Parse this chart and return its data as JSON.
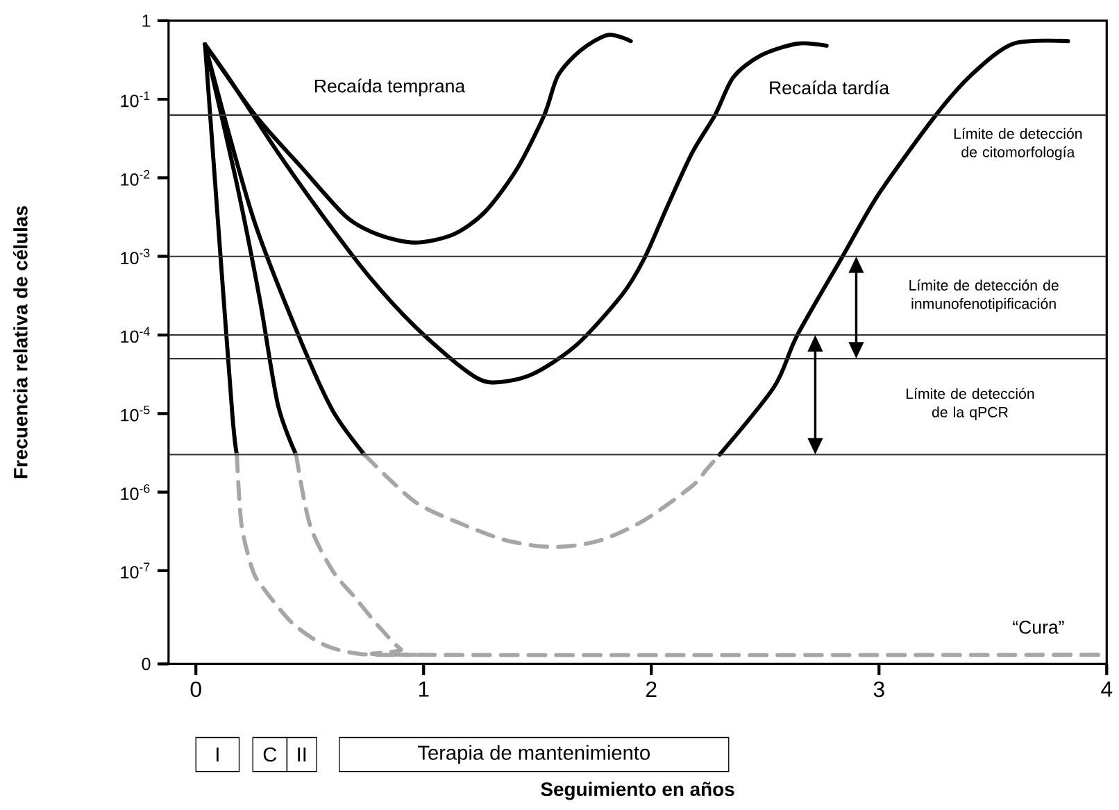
{
  "chart_data": {
    "type": "line",
    "xlabel": "Seguimiento en años",
    "ylabel": "Frecuencia relativa de células",
    "log": "y",
    "xlim": [
      -0.12,
      4
    ],
    "xticks": [
      0,
      1,
      2,
      3,
      4
    ],
    "ylim": [
      6.5e-09,
      1
    ],
    "yticks": [
      {
        "value": 6.5e-09,
        "label": "0"
      },
      {
        "value": 1e-07,
        "label": "10$^{-7}$"
      },
      {
        "value": 1e-06,
        "label": "10$^{-6}$"
      },
      {
        "value": 1e-05,
        "label": "10$^{-5}$"
      },
      {
        "value": 0.0001,
        "label": "10$^{-4}$"
      },
      {
        "value": 0.001,
        "label": "10$^{-3}$"
      },
      {
        "value": 0.01,
        "label": "10$^{-2}$"
      },
      {
        "value": 0.1,
        "label": "10$^{-1}$"
      },
      1
    ],
    "series": [
      {
        "color": "#000000",
        "line_style": "solid",
        "x": [
          0.04,
          0.26,
          0.46,
          0.66,
          0.8,
          0.96,
          1.13,
          1.27,
          1.41,
          1.53,
          1.59,
          1.69,
          1.81,
          1.91
        ],
        "values": [
          0.5,
          0.063,
          0.014,
          0.0032,
          0.0019,
          0.0015,
          0.0019,
          0.0037,
          0.013,
          0.063,
          0.2,
          0.42,
          0.66,
          0.55
        ]
      },
      {
        "color": "#000000",
        "line_style": "solid",
        "x": [
          0.04,
          0.16,
          0.36,
          0.56,
          0.76,
          0.96,
          1.17,
          1.29,
          1.47,
          1.67,
          1.87,
          1.97,
          2.07,
          2.18,
          2.28,
          2.36,
          2.48,
          2.64,
          2.77
        ],
        "values": [
          0.5,
          0.16,
          0.021,
          0.0032,
          0.00056,
          0.00013,
          3.8e-05,
          2.5e-05,
          3.1e-05,
          7.4e-05,
          0.00032,
          0.00095,
          0.0043,
          0.021,
          0.063,
          0.19,
          0.36,
          0.51,
          0.48
        ]
      },
      {
        "color": "#000000",
        "line_style": "solid",
        "x": [
          0.04,
          0.1,
          0.16,
          0.18
        ],
        "values": [
          0.5,
          0.0021,
          9.8e-06,
          3e-06
        ]
      },
      {
        "color": "#a6a6a6",
        "line_style": "dashed",
        "x": [
          0.18,
          0.2,
          0.25,
          0.3,
          0.42,
          0.56,
          0.72,
          0.96
        ],
        "values": [
          3e-06,
          3.9e-07,
          1e-07,
          5.8e-08,
          2.2e-08,
          1.15e-08,
          8.7e-09,
          8.5e-09
        ]
      },
      {
        "color": "#000000",
        "line_style": "solid",
        "x": [
          0.04,
          0.18,
          0.28,
          0.36,
          0.44
        ],
        "values": [
          0.5,
          0.0083,
          0.00029,
          1.3e-05,
          3e-06
        ]
      },
      {
        "color": "#a6a6a6",
        "line_style": "dashed",
        "x": [
          0.44,
          0.5,
          0.6,
          0.7,
          0.8,
          0.9,
          0.98,
          4
        ],
        "values": [
          3e-06,
          3.9e-07,
          1e-07,
          4.5e-08,
          2e-08,
          1e-08,
          8.5e-09,
          8.5e-09
        ]
      },
      {
        "color": "#000000",
        "line_style": "solid",
        "x": [
          0.04,
          0.25,
          0.45,
          0.6,
          0.74
        ],
        "values": [
          0.5,
          0.0032,
          0.0001,
          1.1e-05,
          3e-06
        ]
      },
      {
        "color": "#a6a6a6",
        "line_style": "dashed",
        "x": [
          0.74,
          0.96,
          1.17,
          1.37,
          1.57,
          1.77,
          1.97,
          2.18,
          2.24,
          2.3
        ],
        "values": [
          3e-06,
          7.6e-07,
          3.9e-07,
          2.4e-07,
          2e-07,
          2.4e-07,
          4.4e-07,
          1.2e-06,
          1.9e-06,
          3e-06
        ]
      },
      {
        "color": "#000000",
        "line_style": "solid",
        "x": [
          2.3,
          2.54,
          2.64,
          2.84,
          3.0,
          3.25,
          3.41,
          3.59,
          3.83
        ],
        "values": [
          3e-06,
          2.2e-05,
          9.8e-05,
          0.001,
          0.0063,
          0.063,
          0.21,
          0.51,
          0.55
        ]
      }
    ],
    "ref_lines": [
      {
        "axis": "y",
        "value": 0.063,
        "label": "Límite de detección de citomorfología",
        "color": "#333333"
      },
      {
        "axis": "y",
        "value": 0.001,
        "label": "Límite de detección de inmunofenotipificación",
        "color": "#333333"
      },
      {
        "axis": "y",
        "value": 0.0001,
        "color": "#333333"
      },
      {
        "axis": "y",
        "value": 5e-05,
        "color": "#333333"
      },
      {
        "axis": "y",
        "value": 3e-06,
        "label": "Límite de detección de la qPCR",
        "color": "#333333"
      }
    ],
    "annotations": [
      "Recaída temprana",
      "Recaída tardía",
      "“Cura”",
      "I",
      "C",
      "II",
      "Terapia de mantenimiento"
    ]
  }
}
